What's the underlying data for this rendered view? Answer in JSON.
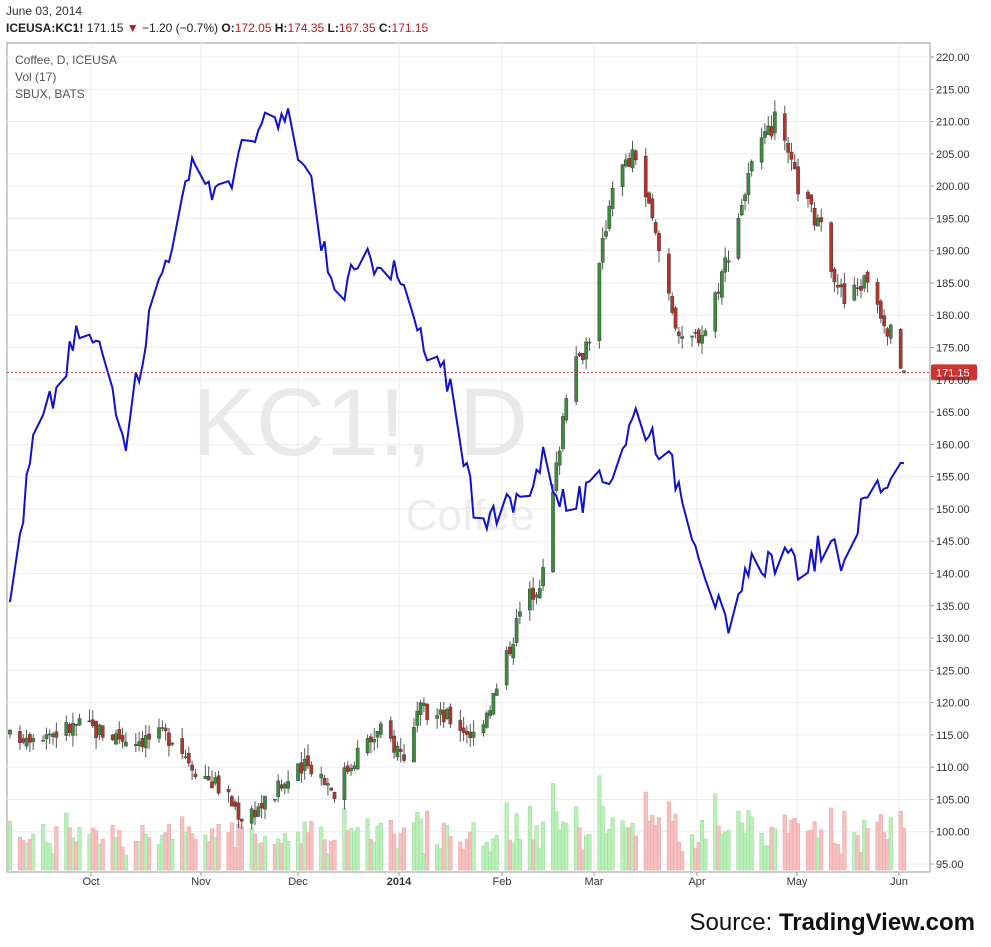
{
  "header": {
    "date": "June 03, 2014",
    "symbol": "ICEUSA:KC1!",
    "last": "171.15",
    "change_arrow": "▼",
    "change": "−1.20 (−0.7%)",
    "open_label": "O:",
    "open": "172.05",
    "high_label": "H:",
    "high": "174.35",
    "low_label": "L:",
    "low": "167.35",
    "close_label": "C:",
    "close": "171.15"
  },
  "legend": [
    "Coffee, D, ICEUSA",
    "Vol (17)",
    "SBUX, BATS"
  ],
  "watermark": {
    "main": "KC1!, D",
    "sub": "Coffee"
  },
  "last_price_badge": "171.15",
  "source": {
    "prefix": "Source: ",
    "brand": "TradingView.com"
  },
  "colors": {
    "up": "#3a8d3a",
    "down": "#b5352a",
    "sbux": "#1010d0",
    "vol_up": "#b8f0b8",
    "vol_down": "#f6c0c0",
    "last_line": "#cc3333"
  },
  "chart_data": {
    "type": "candlestick",
    "x_axis": {
      "ticks": [
        "Oct",
        "Nov",
        "Dec",
        "2014",
        "Feb",
        "Mar",
        "Apr",
        "May",
        "Jun"
      ],
      "bold": [
        "2014"
      ]
    },
    "y_axis": {
      "range": [
        95,
        220
      ],
      "ticks": [
        "220.00",
        "215.00",
        "210.00",
        "205.00",
        "200.00",
        "195.00",
        "190.00",
        "185.00",
        "180.00",
        "175.00",
        "170.00",
        "165.00",
        "160.00",
        "155.00",
        "150.00",
        "145.00",
        "140.00",
        "135.00",
        "130.00",
        "125.00",
        "120.00",
        "115.00",
        "110.00",
        "105.00",
        "100.00",
        "95.00"
      ],
      "side": "right"
    },
    "grid": true,
    "last_price": 171.15,
    "series": [
      {
        "name": "Coffee, D, ICEUSA",
        "kind": "ohlc",
        "start_date": "2013-09-06",
        "end_date": "2014-06-03",
        "close_anchors": [
          [
            "2013-09-06",
            114.5
          ],
          [
            "2013-09-13",
            115.5
          ],
          [
            "2013-09-20",
            115.5
          ],
          [
            "2013-09-27",
            116.5
          ],
          [
            "2013-10-04",
            115.5
          ],
          [
            "2013-10-11",
            114.5
          ],
          [
            "2013-10-18",
            114.5
          ],
          [
            "2013-10-25",
            115.0
          ],
          [
            "2013-11-01",
            110.0
          ],
          [
            "2013-11-08",
            107.0
          ],
          [
            "2013-11-15",
            102.5
          ],
          [
            "2013-11-22",
            104.5
          ],
          [
            "2013-11-29",
            108.0
          ],
          [
            "2013-12-06",
            110.5
          ],
          [
            "2013-12-13",
            106.5
          ],
          [
            "2013-12-20",
            112.5
          ],
          [
            "2013-12-27",
            115.5
          ],
          [
            "2014-01-03",
            112.0
          ],
          [
            "2014-01-08",
            118.5
          ],
          [
            "2014-01-17",
            117.5
          ],
          [
            "2014-01-24",
            115.0
          ],
          [
            "2014-01-31",
            122.0
          ],
          [
            "2014-02-07",
            134.0
          ],
          [
            "2014-02-14",
            140.0
          ],
          [
            "2014-02-21",
            168.5
          ],
          [
            "2014-02-28",
            177.0
          ],
          [
            "2014-03-07",
            201.0
          ],
          [
            "2014-03-14",
            205.0
          ],
          [
            "2014-03-21",
            190.0
          ],
          [
            "2014-03-28",
            175.0
          ],
          [
            "2014-04-04",
            178.0
          ],
          [
            "2014-04-11",
            190.0
          ],
          [
            "2014-04-18",
            203.0
          ],
          [
            "2014-04-25",
            210.0
          ],
          [
            "2014-05-02",
            200.0
          ],
          [
            "2014-05-09",
            193.0
          ],
          [
            "2014-05-16",
            182.0
          ],
          [
            "2014-05-23",
            186.0
          ],
          [
            "2014-05-30",
            177.0
          ],
          [
            "2014-06-03",
            171.15
          ]
        ]
      },
      {
        "name": "SBUX, BATS",
        "kind": "line",
        "scale": "overlay",
        "close_anchors": [
          [
            "2013-09-06",
            70.4
          ],
          [
            "2013-09-13",
            74.1
          ],
          [
            "2013-09-20",
            75.3
          ],
          [
            "2013-09-27",
            76.7
          ],
          [
            "2013-10-04",
            76.2
          ],
          [
            "2013-10-11",
            74.3
          ],
          [
            "2013-10-18",
            77.0
          ],
          [
            "2013-10-25",
            78.9
          ],
          [
            "2013-11-01",
            80.6
          ],
          [
            "2013-11-08",
            79.8
          ],
          [
            "2013-11-15",
            80.8
          ],
          [
            "2013-11-22",
            81.4
          ],
          [
            "2013-11-29",
            81.6
          ],
          [
            "2013-12-06",
            80.0
          ],
          [
            "2013-12-13",
            77.5
          ],
          [
            "2013-12-20",
            78.0
          ],
          [
            "2013-12-27",
            78.5
          ],
          [
            "2014-01-03",
            77.6
          ],
          [
            "2014-01-10",
            76.0
          ],
          [
            "2014-01-17",
            75.5
          ],
          [
            "2014-01-24",
            72.7
          ],
          [
            "2014-01-31",
            72.3
          ],
          [
            "2014-02-07",
            72.8
          ],
          [
            "2014-02-14",
            73.7
          ],
          [
            "2014-02-21",
            72.6
          ],
          [
            "2014-02-28",
            72.8
          ],
          [
            "2014-03-07",
            73.5
          ],
          [
            "2014-03-14",
            74.8
          ],
          [
            "2014-03-21",
            74.1
          ],
          [
            "2014-03-28",
            73.0
          ],
          [
            "2014-04-04",
            71.2
          ],
          [
            "2014-04-11",
            69.5
          ],
          [
            "2014-04-18",
            71.3
          ],
          [
            "2014-04-25",
            71.4
          ],
          [
            "2014-05-02",
            71.2
          ],
          [
            "2014-05-09",
            71.6
          ],
          [
            "2014-05-16",
            71.4
          ],
          [
            "2014-05-23",
            72.9
          ],
          [
            "2014-05-30",
            73.3
          ],
          [
            "2014-06-03",
            74.0
          ]
        ]
      },
      {
        "name": "Vol (17)",
        "kind": "volume"
      }
    ]
  }
}
